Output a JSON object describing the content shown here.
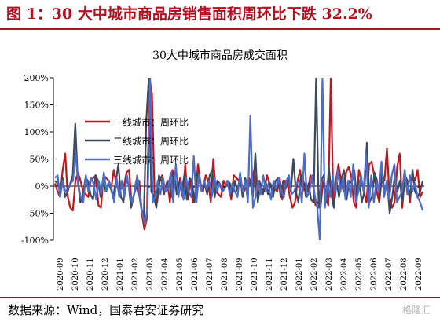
{
  "figure": {
    "title": "图 1：30 大中城市商品房销售面积周环比下跌 32.2%",
    "source": "数据来源：Wind，国泰君安证券研究",
    "watermark": "格隆汇"
  },
  "chart_data": {
    "type": "line",
    "title": "30大中城市商品房成交面积",
    "xlabel": "",
    "ylabel": "",
    "ylim": [
      -100,
      200
    ],
    "yticks": [
      "200%",
      "150%",
      "100%",
      "50%",
      "0%",
      "-50%",
      "-100%"
    ],
    "ytick_values": [
      200,
      150,
      100,
      50,
      0,
      -50,
      -100
    ],
    "xticks": [
      "2020-09",
      "2020-10",
      "2020-11",
      "2020-12",
      "2021-01",
      "2021-02",
      "2021-03",
      "2021-04",
      "2021-05",
      "2021-06",
      "2021-07",
      "2021-08",
      "2021-09",
      "2021-10",
      "2021-11",
      "2021-12",
      "2022-01",
      "2022-02",
      "2022-03",
      "2022-04",
      "2022-05",
      "2022-06",
      "2022-07",
      "2022-08",
      "2022-09"
    ],
    "grid": false,
    "legend_position": "top-left",
    "series": [
      {
        "name": "一线城市：周环比",
        "color": "#c0171f",
        "values": [
          5,
          -10,
          -20,
          30,
          60,
          -20,
          -40,
          -45,
          10,
          25,
          10,
          -10,
          -15,
          -20,
          10,
          15,
          20,
          -35,
          -40,
          20,
          15,
          10,
          -5,
          30,
          5,
          -10,
          -5,
          0,
          25,
          30,
          -30,
          -15,
          0,
          10,
          -50,
          -80,
          -60,
          200,
          170,
          -20,
          -30,
          10,
          20,
          -10,
          10,
          -30,
          30,
          5,
          -10,
          15,
          -20,
          40,
          -25,
          10,
          -30,
          -20,
          40,
          5,
          -10,
          20,
          10,
          -30,
          50,
          -10,
          -15,
          -20,
          10,
          0,
          5,
          -25,
          20,
          15,
          10,
          5,
          -10,
          0,
          15,
          5,
          30,
          -15,
          10,
          -5,
          -10,
          20,
          5,
          0,
          -5,
          -10,
          15,
          -25,
          10,
          5,
          -20,
          -40,
          -30,
          10,
          30,
          -10,
          5,
          -10,
          20,
          5,
          -35,
          -30,
          -40,
          10,
          -20,
          -35,
          200,
          -30,
          10,
          40,
          10,
          -10,
          25,
          35,
          20,
          -30,
          -40,
          30,
          10,
          -10,
          -30,
          40,
          45,
          20,
          -10,
          -30,
          15,
          10,
          70,
          -20,
          -40,
          -30,
          35,
          60,
          -40,
          20,
          10,
          -30,
          20,
          10,
          30,
          -20,
          -10
        ]
      },
      {
        "name": "二线城市：周环比",
        "color": "#3b4a5c",
        "values": [
          10,
          5,
          -10,
          15,
          -20,
          -10,
          5,
          20,
          115,
          10,
          -30,
          -20,
          15,
          10,
          -15,
          -25,
          20,
          10,
          -20,
          15,
          -10,
          5,
          -5,
          -20,
          10,
          40,
          -20,
          -30,
          10,
          5,
          -40,
          -20,
          10,
          -10,
          -40,
          -60,
          120,
          200,
          -10,
          -20,
          -40,
          20,
          10,
          -15,
          5,
          10,
          -20,
          25,
          -15,
          5,
          -10,
          20,
          -25,
          15,
          10,
          -30,
          25,
          10,
          -10,
          5,
          -15,
          20,
          30,
          -20,
          10,
          5,
          -10,
          -5,
          10,
          5,
          -15,
          10,
          -10,
          20,
          -20,
          15,
          -5,
          10,
          -20,
          60,
          -30,
          5,
          -15,
          10,
          -15,
          5,
          -20,
          10,
          15,
          -20,
          10,
          -5,
          15,
          -10,
          50,
          -10,
          -30,
          20,
          10,
          -20,
          5,
          -25,
          -30,
          200,
          -40,
          10,
          20,
          -30,
          35,
          -15,
          -40,
          10,
          -20,
          15,
          30,
          -25,
          10,
          5,
          30,
          -20,
          10,
          -30,
          -10,
          80,
          -30,
          -20,
          25,
          10,
          -20,
          30,
          -15,
          10,
          -50,
          -20,
          20,
          -10,
          10,
          -30,
          20,
          5,
          -20,
          30,
          -10,
          -20,
          -10,
          10
        ]
      },
      {
        "name": "三线城市：周环比",
        "color": "#4d6bc9",
        "values": [
          15,
          20,
          -20,
          10,
          -10,
          -5,
          5,
          10,
          60,
          5,
          -20,
          -30,
          20,
          -10,
          15,
          5,
          -25,
          10,
          -15,
          25,
          -10,
          10,
          -5,
          -30,
          15,
          -20,
          10,
          -20,
          20,
          -10,
          -30,
          -10,
          20,
          -20,
          -50,
          -70,
          -40,
          200,
          -30,
          -20,
          10,
          -15,
          15,
          -10,
          -5,
          25,
          -30,
          40,
          -20,
          10,
          -25,
          15,
          -10,
          -20,
          55,
          -30,
          20,
          -10,
          10,
          -5,
          10,
          -20,
          15,
          -10,
          5,
          -10,
          -5,
          10,
          -15,
          5,
          -10,
          -20,
          25,
          -10,
          10,
          -30,
          130,
          -40,
          -20,
          10,
          -15,
          20,
          -10,
          5,
          -25,
          10,
          -5,
          15,
          -10,
          -20,
          10,
          20,
          -15,
          -10,
          5,
          10,
          -30,
          60,
          -20,
          -10,
          20,
          -15,
          -40,
          -100,
          200,
          -40,
          10,
          -20,
          20,
          -20,
          30,
          -10,
          15,
          -25,
          10,
          -20,
          40,
          -30,
          -10,
          20,
          -10,
          60,
          -40,
          20,
          -30,
          10,
          -10,
          45,
          -20,
          10,
          -25,
          20,
          40,
          -30,
          -20,
          -10,
          30,
          -15,
          20,
          -10,
          5,
          -20,
          -30,
          -45
        ]
      }
    ]
  }
}
